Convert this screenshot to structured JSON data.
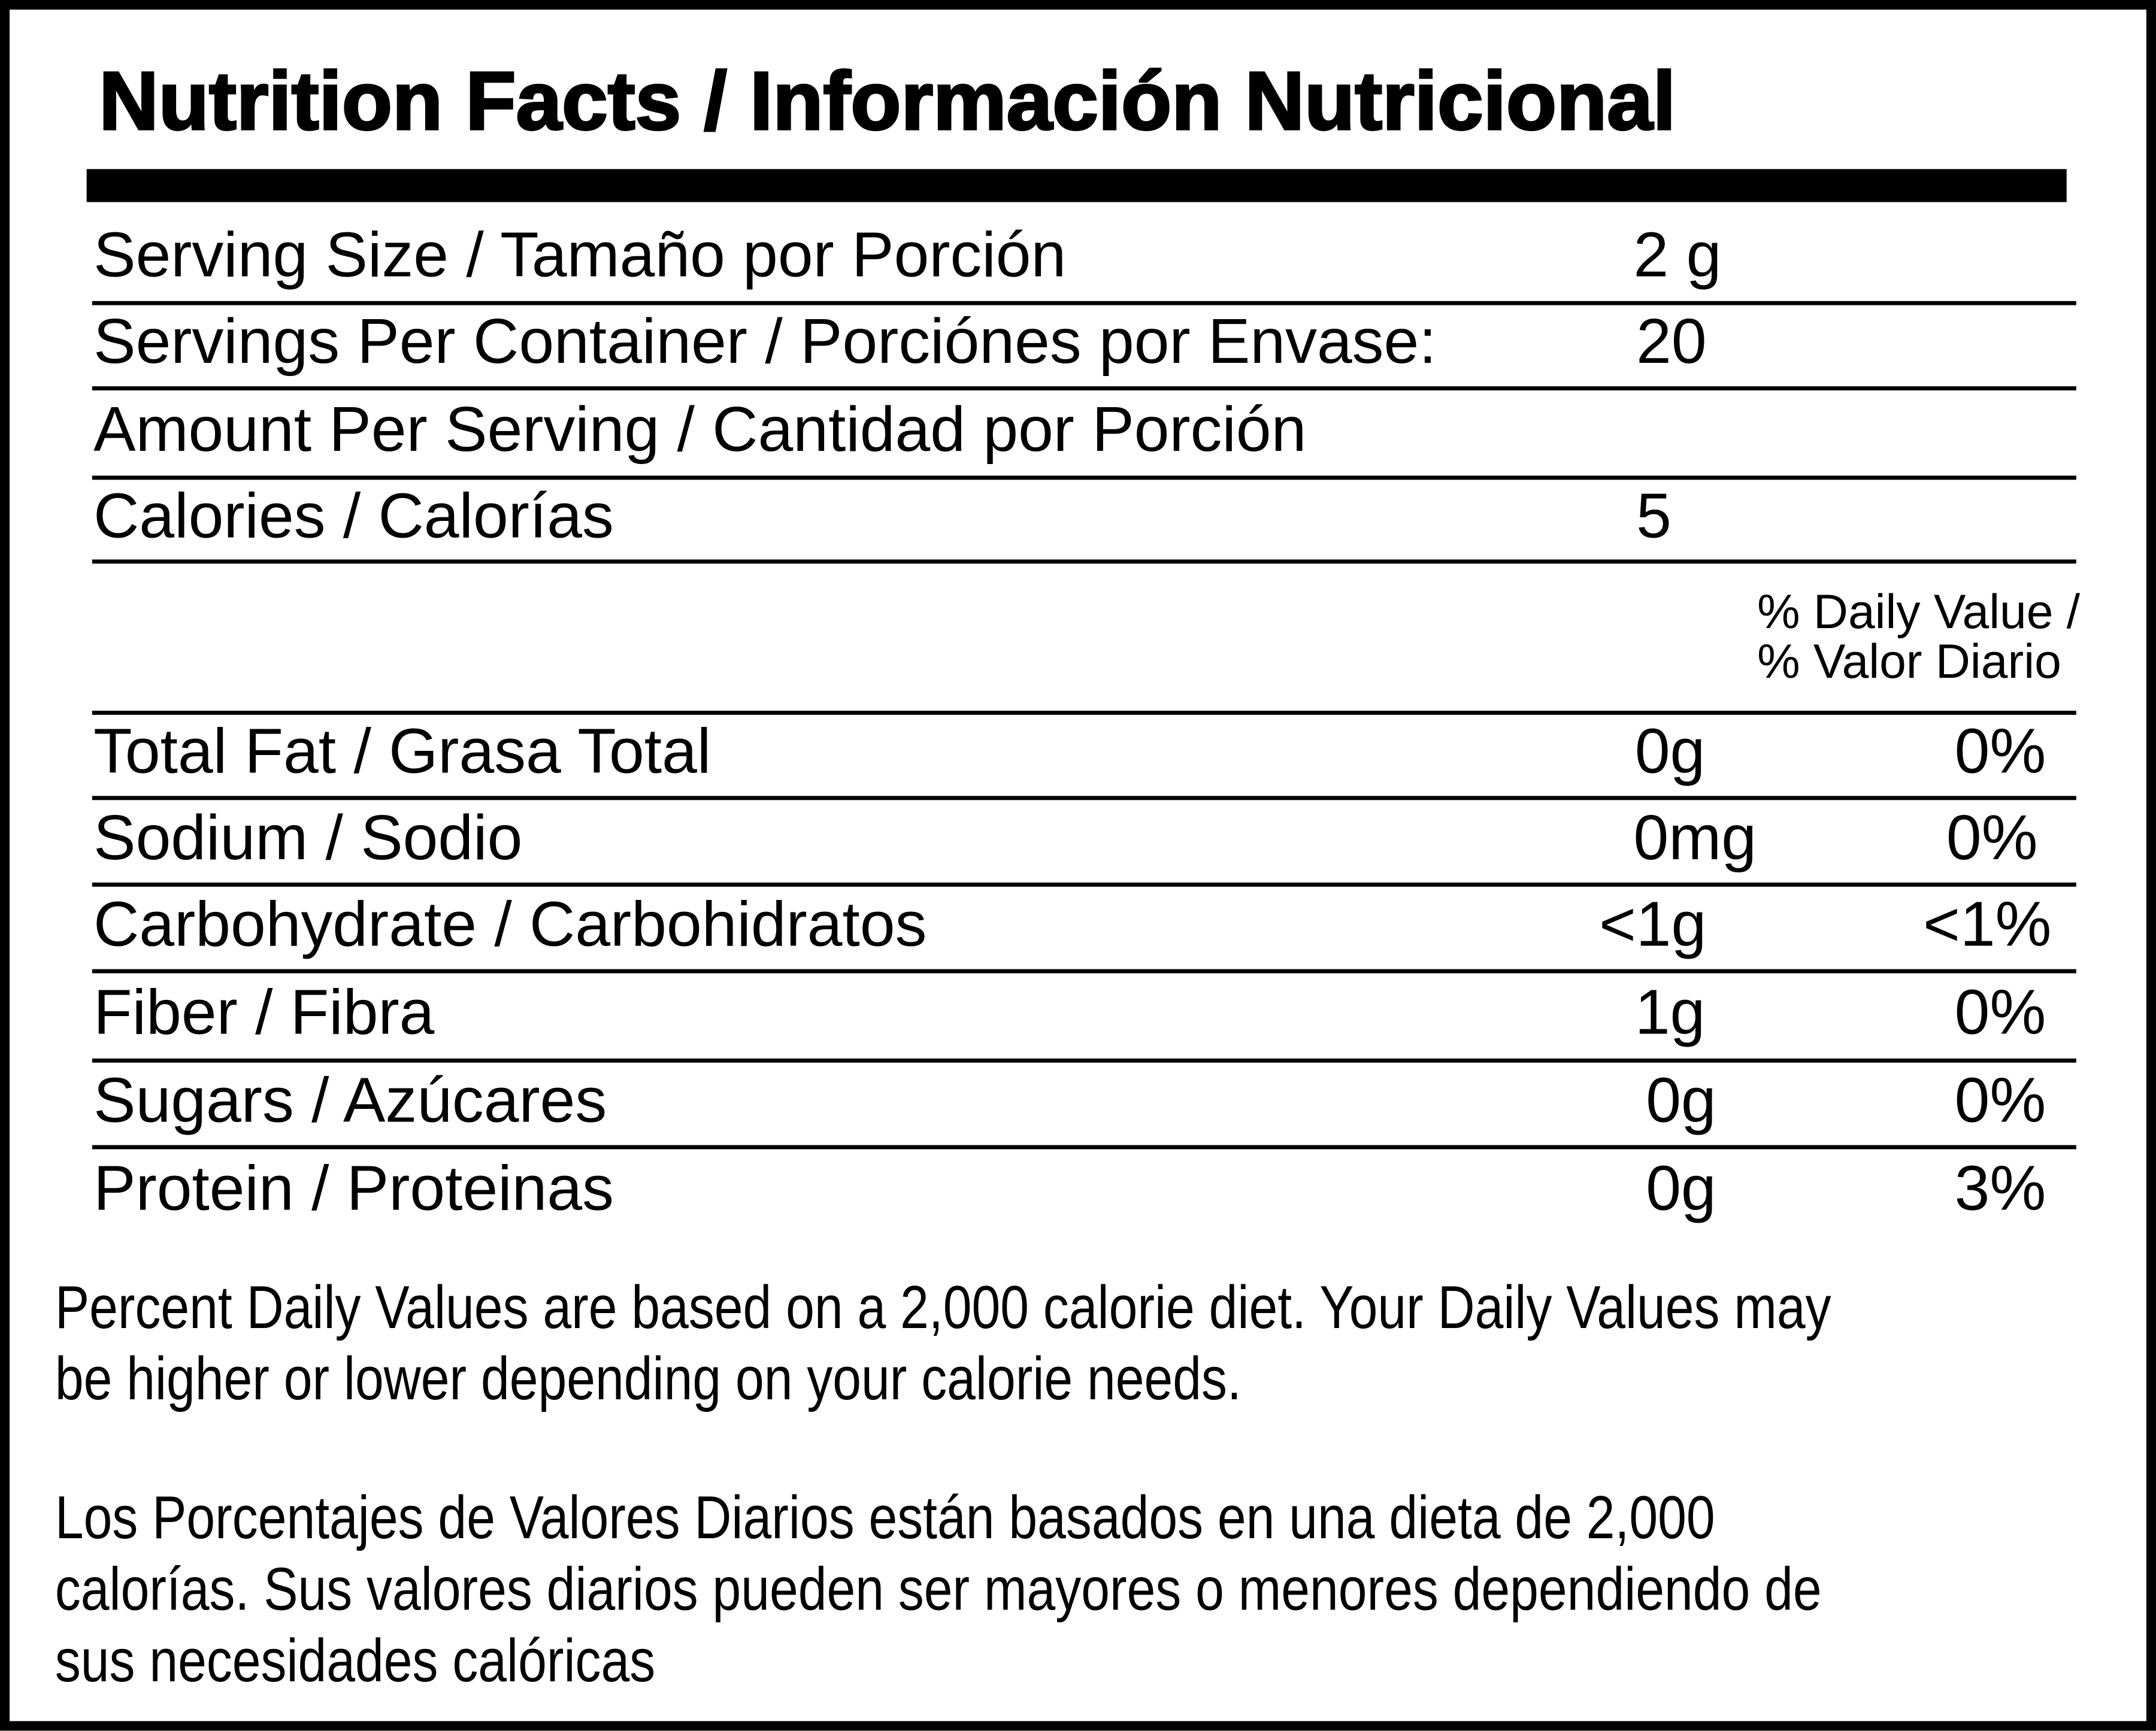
{
  "title": "Nutrition Facts / Información Nutricional",
  "serving": [
    {
      "label": "Serving Size / Tamaño por Porción",
      "value": "2 g"
    },
    {
      "label": "Servings Per Container / Porciónes por Envase:",
      "value": "20"
    },
    {
      "label": "Amount Per Serving / Cantidad por Porción",
      "value": ""
    },
    {
      "label": "Calories / Calorías",
      "value": "5"
    }
  ],
  "dv_header": {
    "line1": "% Daily Value /",
    "line2": "% Valor Diario"
  },
  "nutrients": [
    {
      "label": "Total Fat / Grasa Total",
      "amount": "0g",
      "dv": "0%"
    },
    {
      "label": "Sodium / Sodio",
      "amount": "0mg",
      "dv": "0%"
    },
    {
      "label": "Carbohydrate / Carbohidratos",
      "amount": "<1g",
      "dv": "<1%"
    },
    {
      "label": "Fiber / Fibra",
      "amount": "1g",
      "dv": "0%"
    },
    {
      "label": "Sugars / Azúcares",
      "amount": "0g",
      "dv": "0%"
    },
    {
      "label": "Protein / Proteinas",
      "amount": "0g",
      "dv": "3%"
    }
  ],
  "footnote_en": [
    "Percent Daily Values are based on a 2,000 calorie diet. Your Daily Values may",
    "be higher or lower depending on your calorie needs."
  ],
  "footnote_es": [
    "Los Porcentajes de Valores Diarios están basados en una dieta de 2,000",
    "calorías. Sus valores diarios pueden ser mayores o menores dependiendo de",
    "sus necesidades calóricas"
  ]
}
